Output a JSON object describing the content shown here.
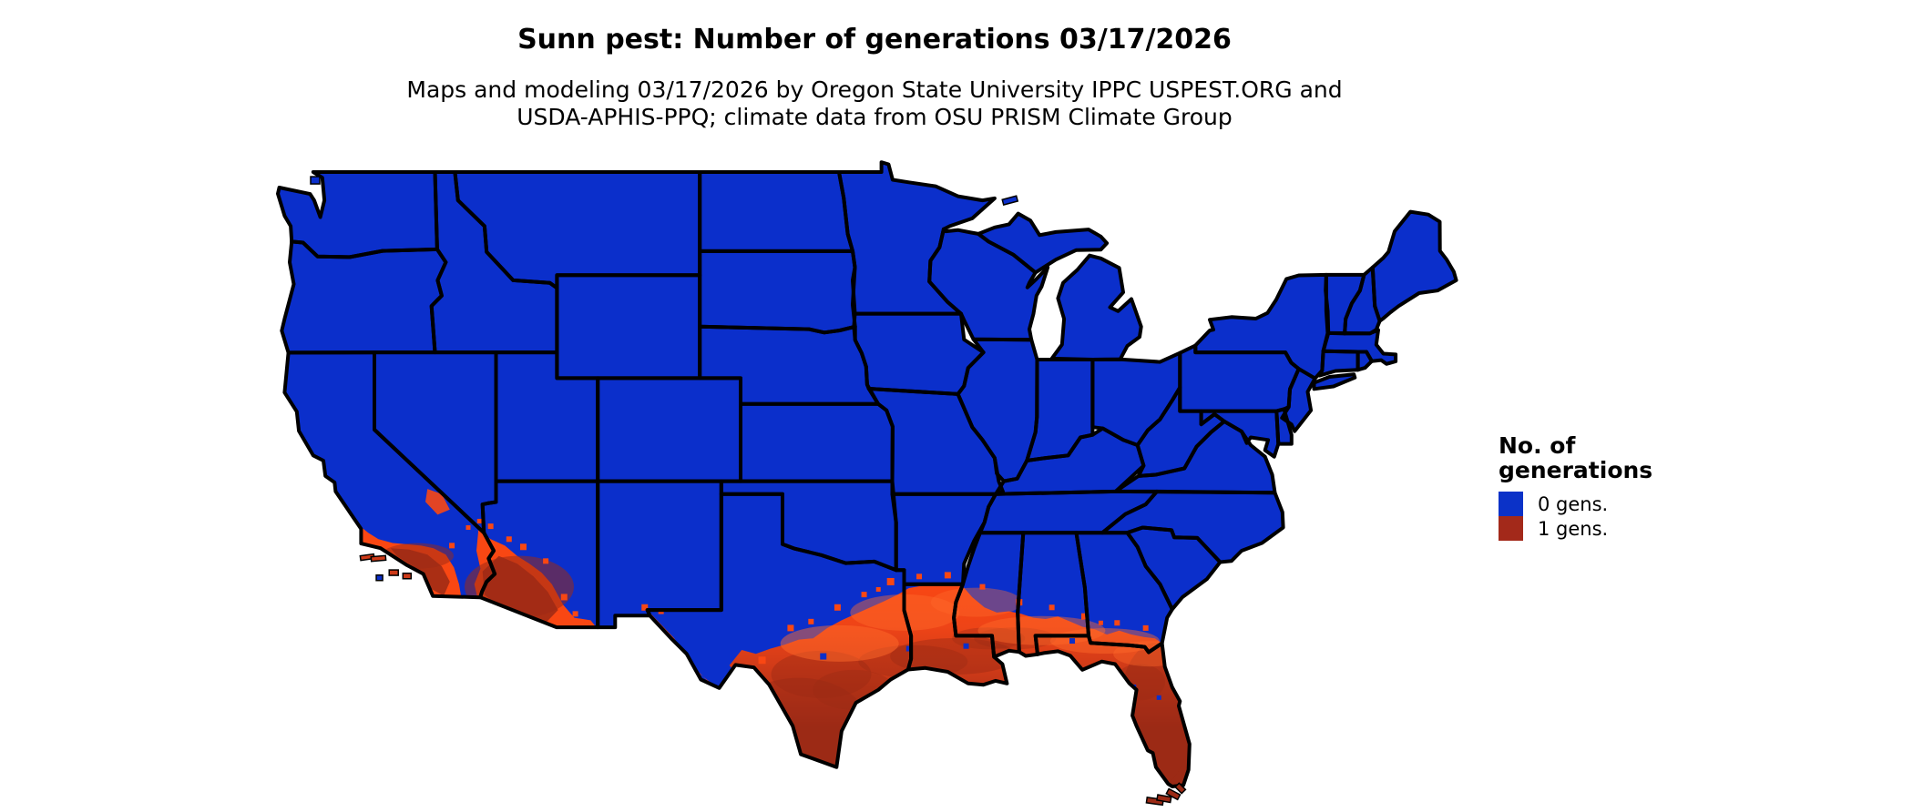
{
  "title": "Sunn pest: Number of generations 03/17/2026",
  "subtitle_line1": "Maps and modeling 03/17/2026 by Oregon State University IPPC USPEST.ORG and",
  "subtitle_line2": "USDA-APHIS-PPQ; climate data from OSU PRISM Climate Group",
  "legend": {
    "title_line1": "No. of",
    "title_line2": "generations",
    "items": [
      {
        "label": "0 gens.",
        "value": 0,
        "color": "#0B32C8"
      },
      {
        "label": "1 gens.",
        "value": 1,
        "color": "#A3291A"
      }
    ]
  },
  "map": {
    "region": "Contiguous United States",
    "colors": {
      "zero_generations": "#0B2FCB",
      "one_generation_low": "#F94713",
      "one_generation_mid": "#CE3A18",
      "one_generation_high": "#9C2A15",
      "state_border": "#000000",
      "water_background": "#FFFFFF"
    }
  }
}
